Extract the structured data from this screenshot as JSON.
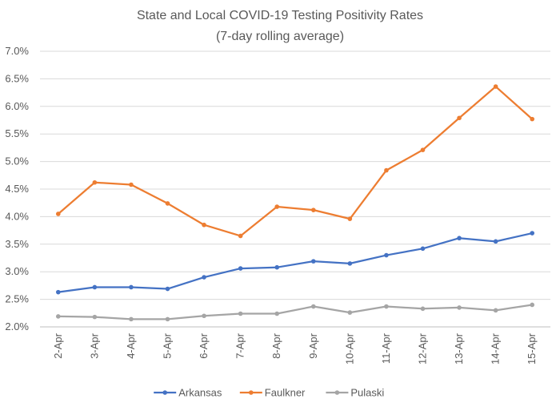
{
  "chart_data": {
    "type": "line",
    "title_lines": [
      "State and Local COVID-19 Testing Positivity Rates",
      "(7-day rolling average)"
    ],
    "xlabel": "",
    "ylabel": "",
    "ylim": [
      0.02,
      0.07
    ],
    "y_ticks": [
      {
        "value": 0.02,
        "label": "2.0%"
      },
      {
        "value": 0.025,
        "label": "2.5%"
      },
      {
        "value": 0.03,
        "label": "3.0%"
      },
      {
        "value": 0.035,
        "label": "3.5%"
      },
      {
        "value": 0.04,
        "label": "4.0%"
      },
      {
        "value": 0.045,
        "label": "4.5%"
      },
      {
        "value": 0.05,
        "label": "5.0%"
      },
      {
        "value": 0.055,
        "label": "5.5%"
      },
      {
        "value": 0.06,
        "label": "6.0%"
      },
      {
        "value": 0.065,
        "label": "6.5%"
      },
      {
        "value": 0.07,
        "label": "7.0%"
      }
    ],
    "grid": true,
    "legend_position": "bottom",
    "categories": [
      "2-Apr",
      "3-Apr",
      "4-Apr",
      "5-Apr",
      "6-Apr",
      "7-Apr",
      "8-Apr",
      "9-Apr",
      "10-Apr",
      "11-Apr",
      "12-Apr",
      "13-Apr",
      "14-Apr",
      "15-Apr"
    ],
    "series": [
      {
        "name": "Arkansas",
        "color": "#4472C4",
        "values": [
          0.0263,
          0.0272,
          0.0272,
          0.0269,
          0.029,
          0.0306,
          0.0308,
          0.0319,
          0.0315,
          0.033,
          0.0342,
          0.0361,
          0.0355,
          0.037
        ]
      },
      {
        "name": "Faulkner",
        "color": "#ED7D31",
        "values": [
          0.0405,
          0.0462,
          0.0458,
          0.0424,
          0.0385,
          0.0365,
          0.0418,
          0.0412,
          0.0396,
          0.0484,
          0.0521,
          0.0579,
          0.0636,
          0.0577
        ]
      },
      {
        "name": "Pulaski",
        "color": "#A5A5A5",
        "values": [
          0.0219,
          0.0218,
          0.0214,
          0.0214,
          0.022,
          0.0224,
          0.0224,
          0.0237,
          0.0226,
          0.0237,
          0.0233,
          0.0235,
          0.023,
          0.024
        ]
      }
    ],
    "gridline_color": "#D9D9D9",
    "axis_color": "#BFBFBF"
  }
}
